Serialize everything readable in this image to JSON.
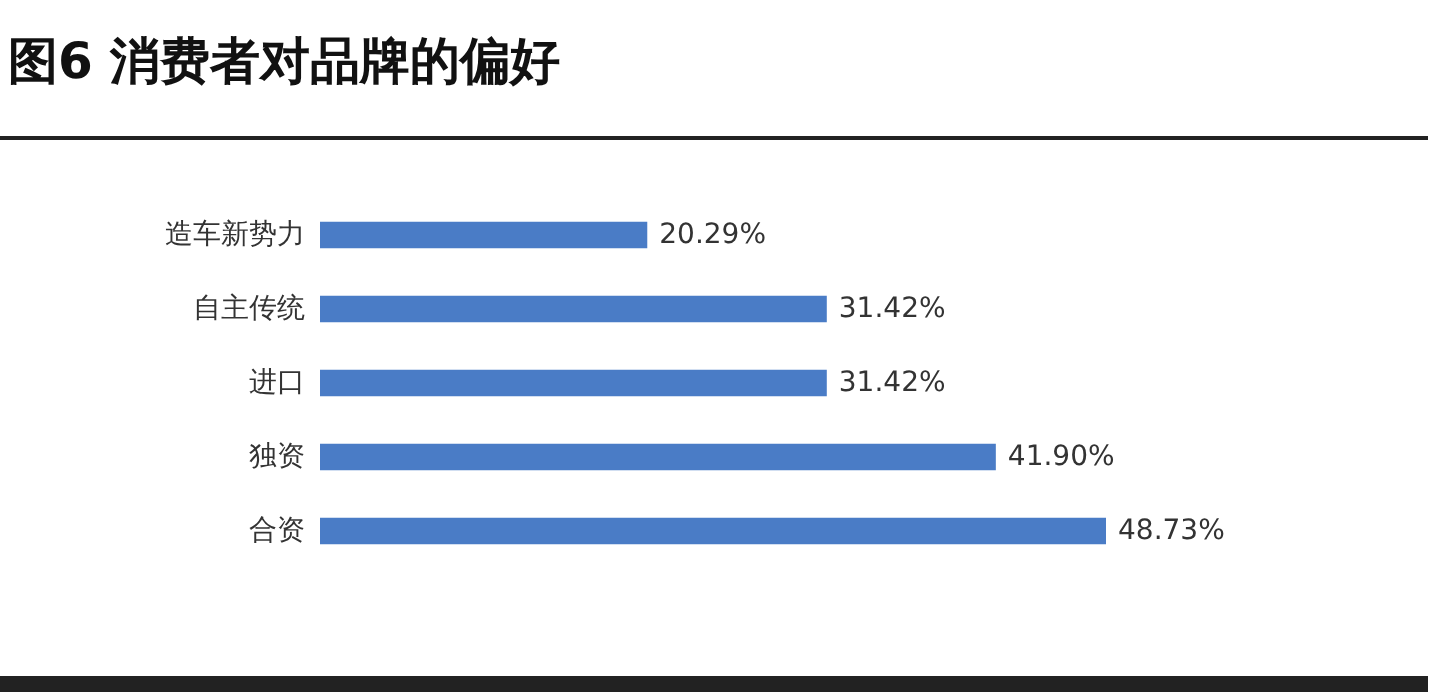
{
  "chart_data": {
    "type": "bar",
    "orientation": "horizontal",
    "title": "图6  消费者对品牌的偏好",
    "categories": [
      "造车新势力",
      "自主传统",
      "进口",
      "独资",
      "合资"
    ],
    "values": [
      20.29,
      31.42,
      31.42,
      41.9,
      48.73
    ],
    "value_labels": [
      "20.29%",
      "31.42%",
      "31.42%",
      "41.90%",
      "48.73%"
    ],
    "color": "#4a7cc6"
  }
}
